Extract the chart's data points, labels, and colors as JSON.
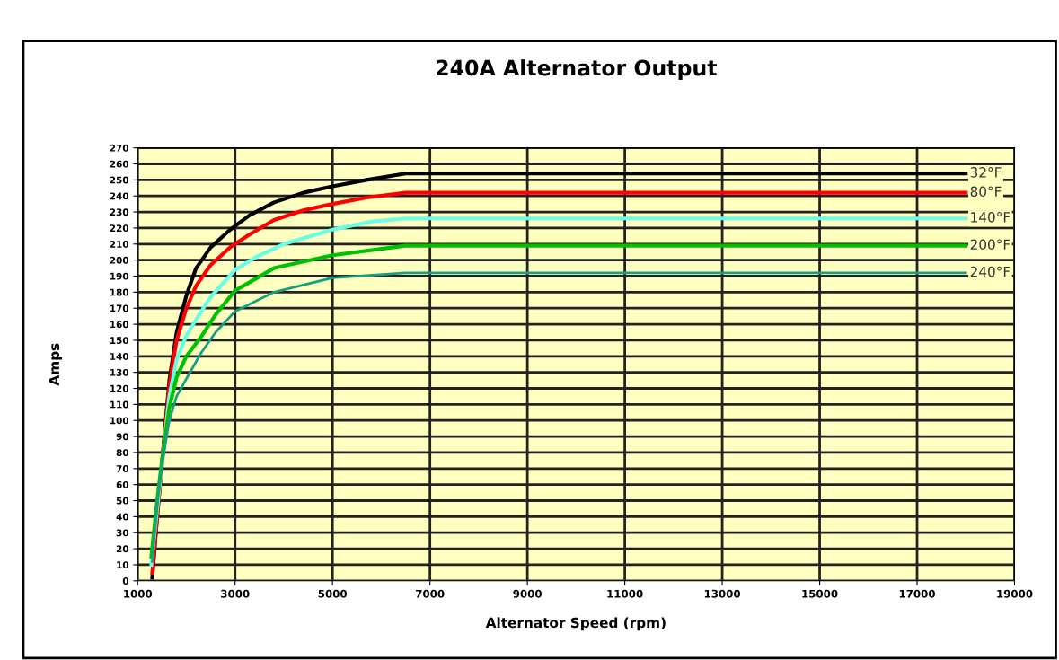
{
  "chart_data": {
    "type": "line",
    "title": "240A Alternator Output",
    "xlabel": "Alternator Speed (rpm)",
    "ylabel": "Amps",
    "xlim": [
      1000,
      19000
    ],
    "xticks": [
      1000,
      3000,
      5000,
      7000,
      9000,
      11000,
      13000,
      15000,
      17000,
      19000
    ],
    "ylim": [
      0,
      270
    ],
    "yticks": [
      0,
      10,
      20,
      30,
      40,
      50,
      60,
      70,
      80,
      90,
      100,
      110,
      120,
      130,
      140,
      150,
      160,
      170,
      180,
      190,
      200,
      210,
      220,
      230,
      240,
      250,
      260,
      270
    ],
    "grid": true,
    "legend": false,
    "marker": "none",
    "line_style": "solid",
    "series": [
      {
        "name": "32°F",
        "color": "#000000",
        "x": [
          1300,
          1400,
          1650,
          1800,
          2000,
          2200,
          2500,
          2900,
          3300,
          3800,
          4400,
          5000,
          5700,
          6500,
          18000
        ],
        "values": [
          2,
          40,
          125,
          155,
          178,
          195,
          208,
          219,
          228,
          236,
          242,
          246,
          250,
          254,
          254
        ]
      },
      {
        "name": "80°F",
        "color": "#ff0000",
        "x": [
          1300,
          1400,
          1650,
          1800,
          2000,
          2200,
          2500,
          2900,
          3300,
          3800,
          4400,
          5000,
          5700,
          6500,
          18000
        ],
        "values": [
          5,
          40,
          122,
          150,
          170,
          184,
          197,
          208,
          216,
          225,
          231,
          235,
          239,
          242,
          242
        ]
      },
      {
        "name": "140°F",
        "color": "#66ffe6",
        "x": [
          1280,
          1400,
          1650,
          1800,
          2000,
          2200,
          2500,
          3000,
          3500,
          4000,
          5000,
          5800,
          6500,
          18000
        ],
        "values": [
          10,
          45,
          115,
          138,
          153,
          163,
          177,
          194,
          203,
          210,
          219,
          224,
          226,
          226
        ]
      },
      {
        "name": "200°F",
        "color": "#00c000",
        "x": [
          1280,
          1400,
          1500,
          1650,
          1800,
          2000,
          2300,
          2600,
          3000,
          3800,
          5000,
          6500,
          18000
        ],
        "values": [
          15,
          50,
          75,
          108,
          127,
          140,
          152,
          166,
          181,
          195,
          203,
          209,
          209
        ]
      },
      {
        "name": "240°F",
        "color": "#1a9e80",
        "x": [
          1300,
          1400,
          1500,
          1650,
          1800,
          2000,
          2300,
          2600,
          3000,
          3800,
          5000,
          6500,
          18000
        ],
        "values": [
          12,
          48,
          73,
          100,
          115,
          126,
          142,
          155,
          168,
          180,
          189,
          192,
          192
        ]
      }
    ]
  }
}
